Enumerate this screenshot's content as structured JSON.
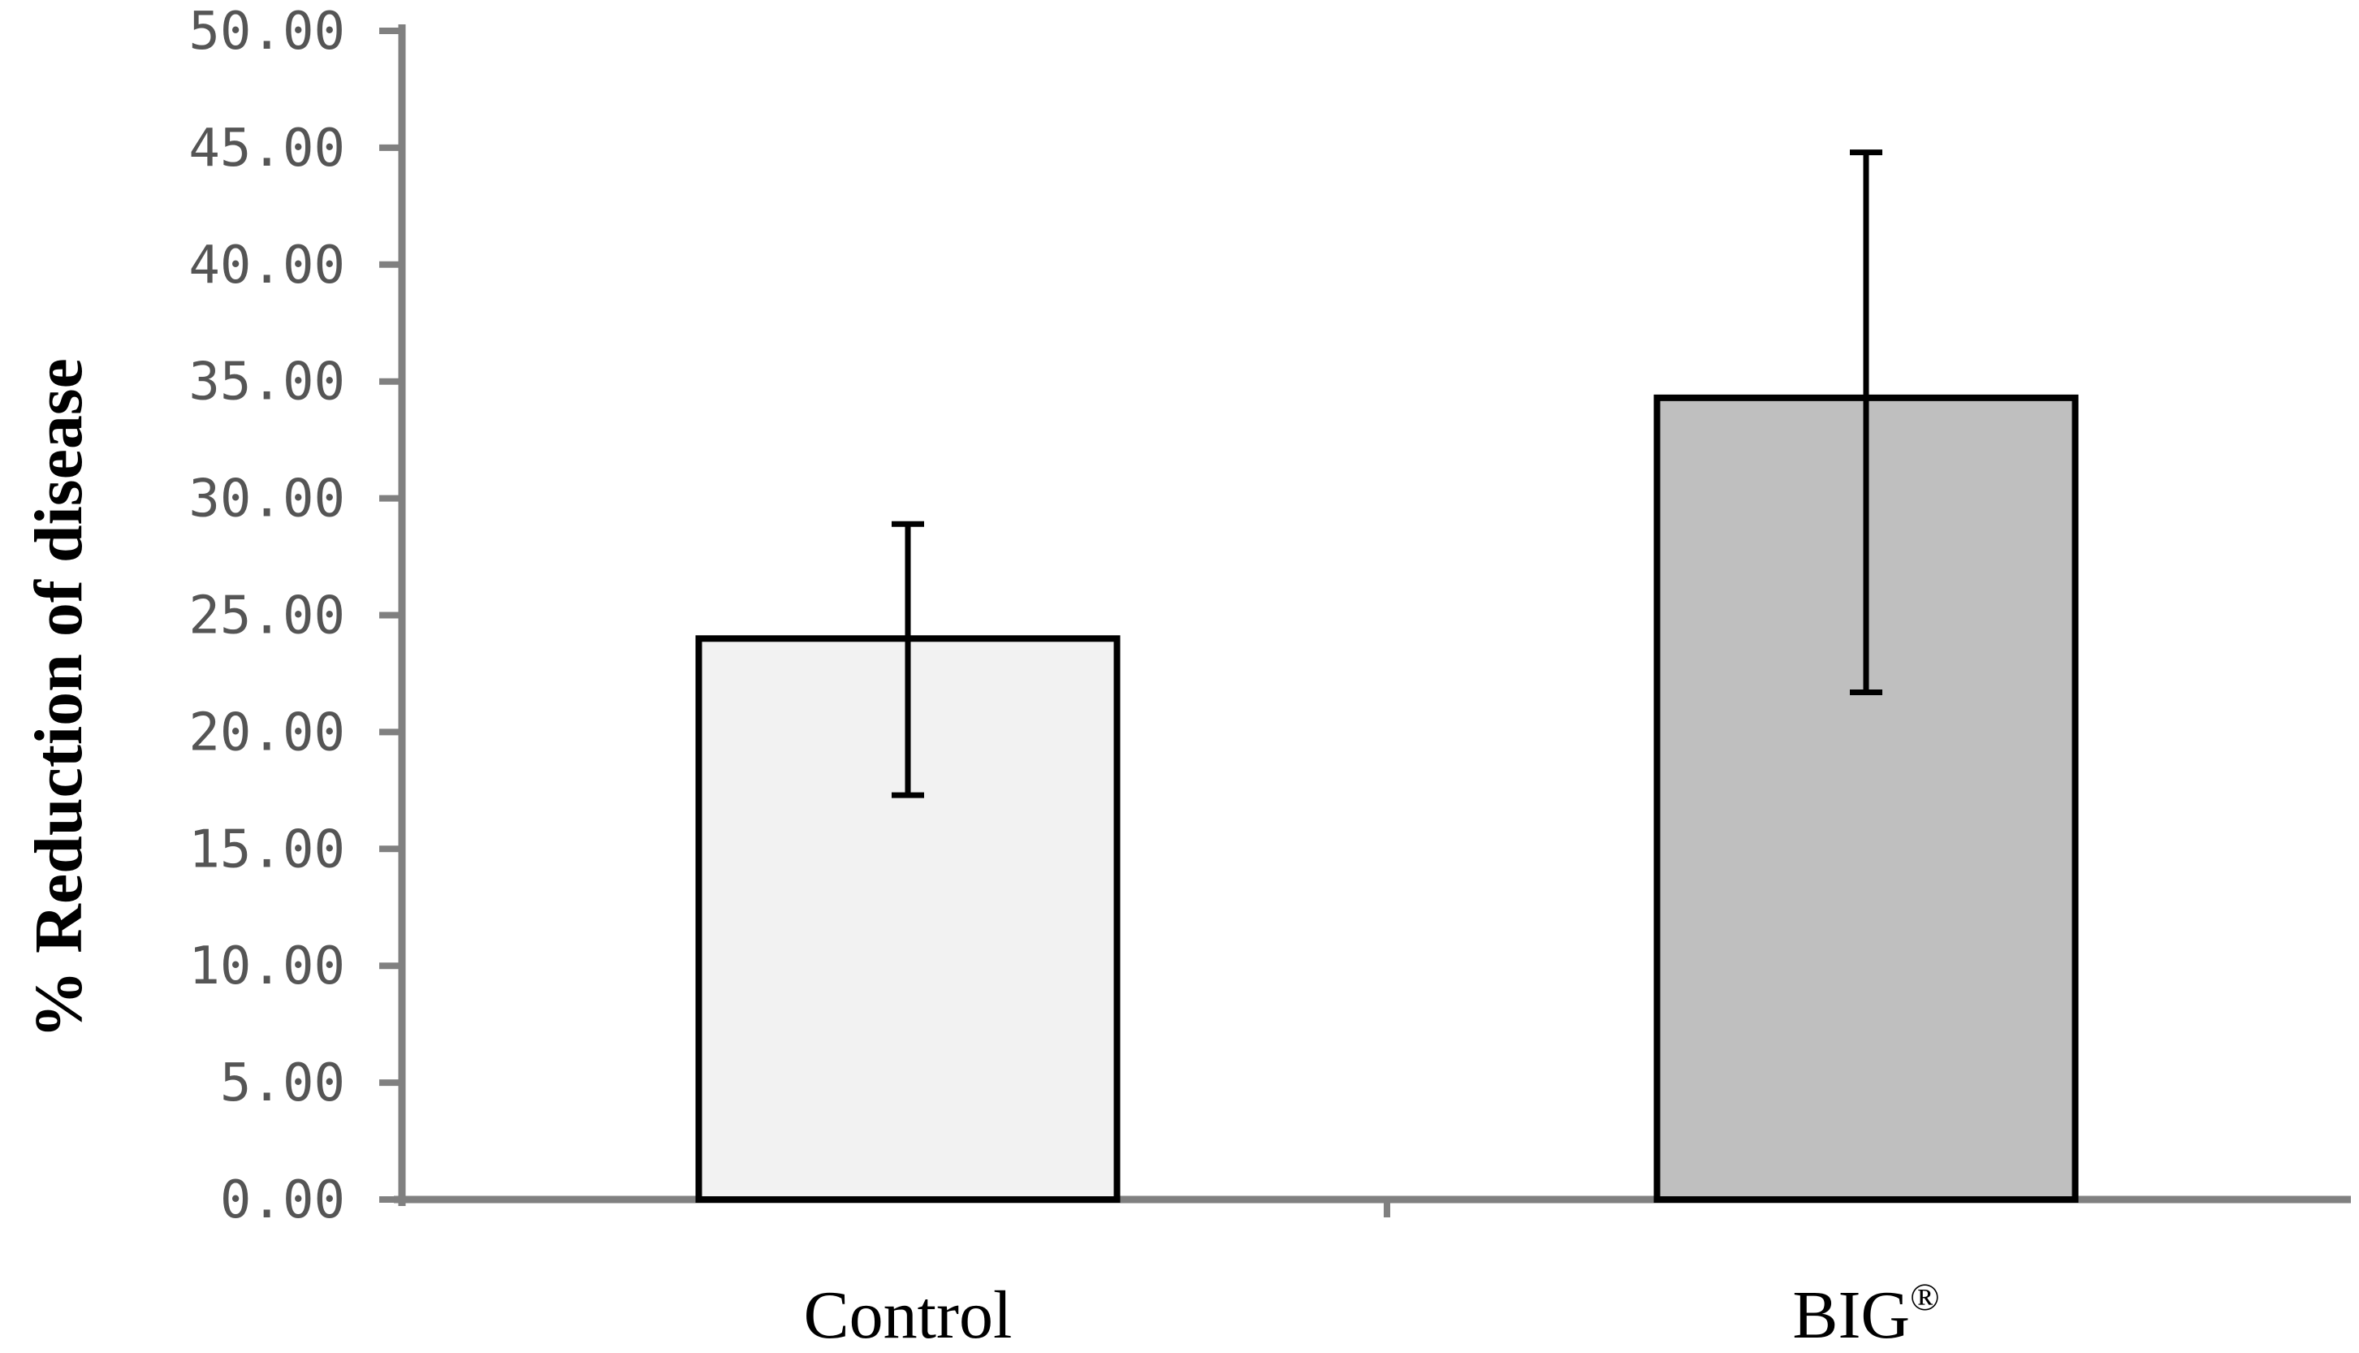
{
  "chart_data": {
    "type": "bar",
    "categories": [
      "Control",
      "BIG®"
    ],
    "category_display": [
      {
        "text": "Control",
        "sup": ""
      },
      {
        "text": "BIG",
        "sup": "®"
      }
    ],
    "values": [
      24.0,
      34.3
    ],
    "errors": [
      {
        "low": 17.3,
        "high": 28.9
      },
      {
        "low": 21.7,
        "high": 44.8
      }
    ],
    "bar_colors": [
      "#f2f2f2",
      "#bfbfbf"
    ],
    "bar_edge_color": "#000000",
    "axis_color": "#808080",
    "title": "",
    "xlabel": "",
    "ylabel": "% Reduction of disease",
    "ylabel_parts": {
      "prefix": "%",
      "main": "Reduction of disease"
    },
    "ylim": [
      0,
      50
    ],
    "yticks": [
      0,
      5,
      10,
      15,
      20,
      25,
      30,
      35,
      40,
      45,
      50
    ],
    "ytick_labels": [
      "0.00",
      "5.00",
      "10.00",
      "15.00",
      "20.00",
      "25.00",
      "30.00",
      "35.00",
      "40.00",
      "45.00",
      "50.00"
    ],
    "grid": false,
    "legend": "none"
  }
}
